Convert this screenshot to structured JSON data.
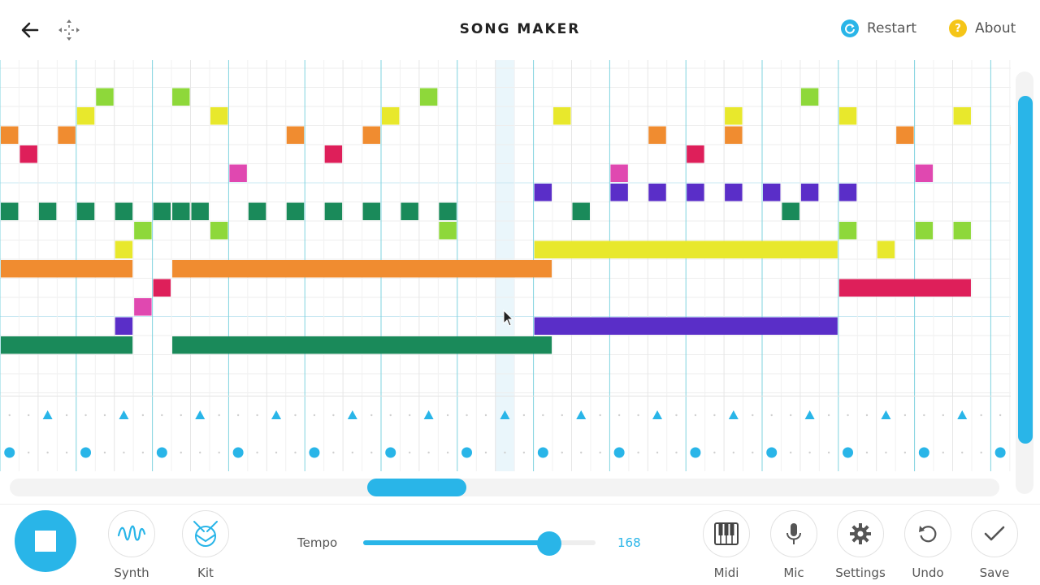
{
  "header": {
    "title": "SONG MAKER",
    "back_icon": "arrow-left-icon",
    "fullscreen_icon": "move-arrows-icon",
    "restart_label": "Restart",
    "restart_color": "#29b5e8",
    "about_label": "About",
    "about_color": "#f5c518"
  },
  "grid": {
    "colors": {
      "C": "#e8e82c",
      "D": "#f08c30",
      "E": "#de1f5a",
      "F": "#e048b0",
      "G": "#5a2ec8",
      "A": "#1a8a5a",
      "B": "#8ed83a"
    },
    "rows_top_to_bottom": [
      "A",
      "B",
      "C",
      "D",
      "E",
      "F",
      "G",
      "A",
      "B",
      "C",
      "D",
      "E",
      "F",
      "G",
      "A",
      "B",
      "C"
    ],
    "notes": [
      [
        5,
        1
      ],
      [
        9,
        1
      ],
      [
        22,
        1
      ],
      [
        42,
        1
      ],
      [
        4,
        2
      ],
      [
        11,
        2
      ],
      [
        20,
        2
      ],
      [
        29,
        2
      ],
      [
        38,
        2
      ],
      [
        44,
        2
      ],
      [
        50,
        2
      ],
      [
        0,
        3
      ],
      [
        3,
        3
      ],
      [
        15,
        3
      ],
      [
        19,
        3
      ],
      [
        34,
        3
      ],
      [
        38,
        3
      ],
      [
        47,
        3
      ],
      [
        53,
        3
      ],
      [
        1,
        4
      ],
      [
        17,
        4
      ],
      [
        36,
        4
      ],
      [
        12,
        5
      ],
      [
        32,
        5
      ],
      [
        48,
        5
      ],
      [
        28,
        6
      ],
      [
        32,
        6
      ],
      [
        34,
        6
      ],
      [
        36,
        6
      ],
      [
        38,
        6
      ],
      [
        40,
        6
      ],
      [
        42,
        6
      ],
      [
        44,
        6
      ],
      [
        0,
        7
      ],
      [
        2,
        7
      ],
      [
        4,
        7
      ],
      [
        6,
        7
      ],
      [
        8,
        7
      ],
      [
        9,
        7
      ],
      [
        10,
        7
      ],
      [
        13,
        7
      ],
      [
        15,
        7
      ],
      [
        17,
        7
      ],
      [
        19,
        7
      ],
      [
        21,
        7
      ],
      [
        23,
        7
      ],
      [
        30,
        7
      ],
      [
        41,
        7
      ],
      [
        7,
        8
      ],
      [
        11,
        8
      ],
      [
        23,
        8
      ],
      [
        44,
        8
      ],
      [
        48,
        8
      ],
      [
        50,
        8
      ],
      [
        6,
        9
      ],
      [
        46,
        9
      ],
      [
        28,
        9,
        16
      ],
      [
        0,
        10,
        7
      ],
      [
        9,
        10,
        20
      ],
      [
        8,
        11
      ],
      [
        44,
        11,
        7
      ],
      [
        7,
        12
      ],
      [
        6,
        13
      ],
      [
        28,
        13,
        16
      ],
      [
        0,
        14,
        7
      ],
      [
        9,
        14,
        20
      ]
    ],
    "triangle_beats": [
      2,
      6,
      10,
      14,
      18,
      22,
      26,
      30,
      34,
      38,
      42,
      46,
      50
    ],
    "dot_beats": [
      0,
      4,
      8,
      12,
      16,
      20,
      24,
      28,
      32,
      36,
      40,
      44,
      48,
      52
    ],
    "playhead_col": 26
  },
  "tools_left": [
    {
      "label": "Synth",
      "icon": "wave-icon"
    },
    {
      "label": "Kit",
      "icon": "drum-kit-icon"
    }
  ],
  "tempo": {
    "label": "Tempo",
    "value": "168",
    "fraction": 0.8
  },
  "tools_right": [
    {
      "label": "Midi",
      "icon": "piano-keys-icon"
    },
    {
      "label": "Mic",
      "icon": "microphone-icon"
    },
    {
      "label": "Settings",
      "icon": "gear-icon"
    },
    {
      "label": "Undo",
      "icon": "undo-icon"
    },
    {
      "label": "Save",
      "icon": "checkmark-icon"
    }
  ],
  "scroll": {
    "horizontal_fraction": 0.36,
    "vertical_fraction": 0.05
  },
  "accent_color": "#29b5e8"
}
